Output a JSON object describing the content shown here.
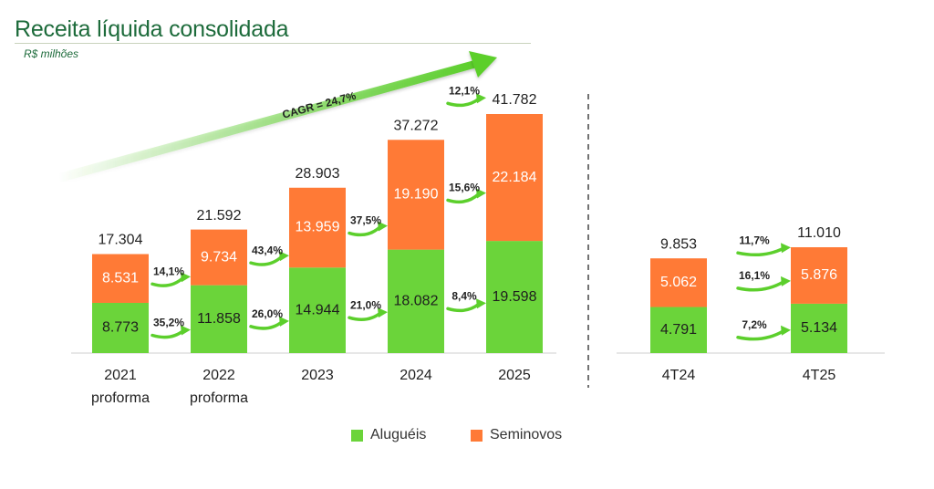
{
  "header": {
    "title": "Receita líquida consolidada",
    "subtitle": "R$ milhões"
  },
  "colors": {
    "alugueis": "#6bd43a",
    "seminovos": "#ff7a36",
    "arrow": "#5ccf2c",
    "title": "#1d6b3b"
  },
  "chart_data": {
    "type": "bar",
    "stacked": true,
    "annual": {
      "categories": [
        [
          "2021",
          "proforma"
        ],
        [
          "2022",
          "proforma"
        ],
        [
          "2023"
        ],
        [
          "2024"
        ],
        [
          "2025"
        ]
      ],
      "series": [
        {
          "name": "Aluguéis",
          "values": [
            8773,
            11858,
            14944,
            18082,
            19598
          ],
          "labels": [
            "8.773",
            "11.858",
            "14.944",
            "18.082",
            "19.598"
          ]
        },
        {
          "name": "Seminovos",
          "values": [
            8531,
            9734,
            13959,
            19190,
            22184
          ],
          "labels": [
            "8.531",
            "9.734",
            "13.959",
            "19.190",
            "22.184"
          ]
        }
      ],
      "totals": [
        "17.304",
        "21.592",
        "28.903",
        "37.272",
        "41.782"
      ],
      "growth": {
        "alugueis": [
          "35,2%",
          "26,0%",
          "21,0%",
          "8,4%"
        ],
        "seminovos": [
          "14,1%",
          "43,4%",
          "37,5%",
          "15,6%"
        ],
        "total": [
          "",
          "",
          "",
          "12,1%"
        ]
      },
      "cagr_label": "CAGR = 24,7%"
    },
    "quarterly": {
      "categories": [
        "4T24",
        "4T25"
      ],
      "series": [
        {
          "name": "Aluguéis",
          "values": [
            4791,
            5134
          ],
          "labels": [
            "4.791",
            "5.134"
          ]
        },
        {
          "name": "Seminovos",
          "values": [
            5062,
            5876
          ],
          "labels": [
            "5.062",
            "5.876"
          ]
        }
      ],
      "totals": [
        "9.853",
        "11.010"
      ],
      "growth": {
        "alugueis": "7,2%",
        "seminovos": "16,1%",
        "total": "11,7%"
      }
    },
    "legend": [
      "Aluguéis",
      "Seminovos"
    ],
    "legend_position": "bottom"
  }
}
